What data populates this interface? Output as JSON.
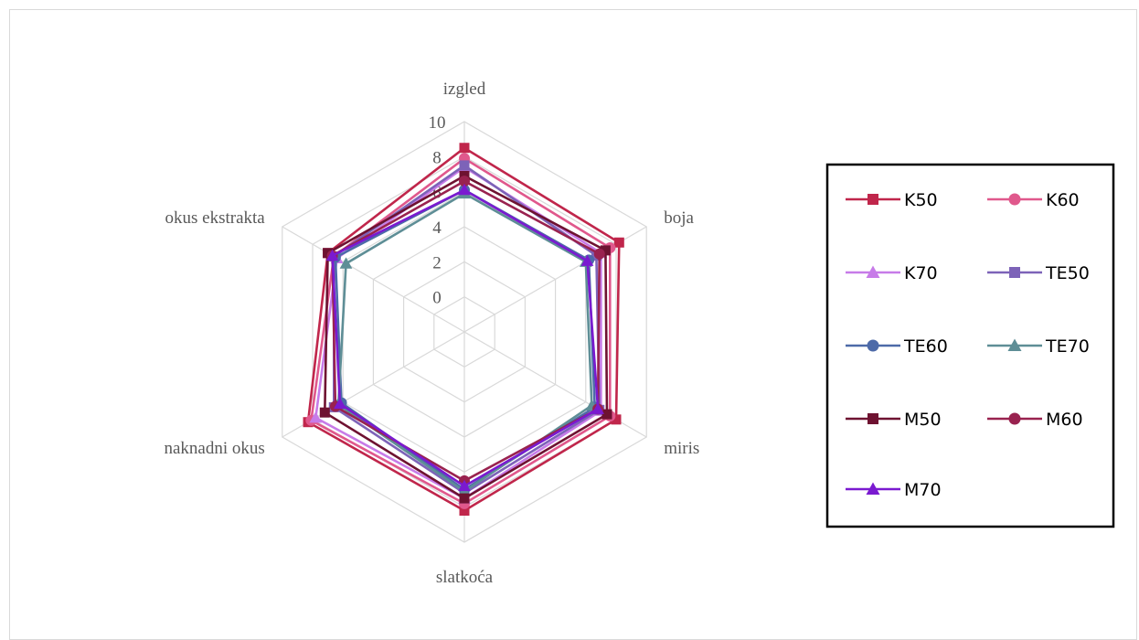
{
  "chart_data": {
    "type": "radar",
    "axes": [
      "izgled",
      "boja",
      "miris",
      "slatkoća",
      "naknadni okus",
      "okus ekstrakta"
    ],
    "r_ticks": [
      "0",
      "2",
      "4",
      "6",
      "8",
      "10"
    ],
    "r_range": [
      -2,
      10
    ],
    "grid": true,
    "legend_position": "right",
    "series": [
      {
        "name": "K50",
        "color": "#c0264b",
        "marker": "square",
        "values": [
          8.5,
          8.2,
          8.0,
          8.2,
          8.3,
          7.0
        ]
      },
      {
        "name": "K60",
        "color": "#e0588c",
        "marker": "circle",
        "values": [
          7.9,
          7.6,
          7.6,
          7.8,
          8.1,
          6.6
        ]
      },
      {
        "name": "K70",
        "color": "#c77be8",
        "marker": "triangle",
        "values": [
          7.4,
          7.0,
          7.0,
          7.5,
          7.8,
          6.4
        ]
      },
      {
        "name": "TE50",
        "color": "#7d63b8",
        "marker": "square",
        "values": [
          7.5,
          6.7,
          6.9,
          7.2,
          6.6,
          6.6
        ]
      },
      {
        "name": "TE60",
        "color": "#4d6aa8",
        "marker": "circle",
        "values": [
          6.1,
          6.2,
          6.6,
          7.0,
          6.1,
          6.5
        ]
      },
      {
        "name": "TE70",
        "color": "#5e8e96",
        "marker": "triangle",
        "values": [
          5.9,
          6.0,
          6.4,
          7.1,
          6.3,
          5.8
        ]
      },
      {
        "name": "M50",
        "color": "#6e1231",
        "marker": "square",
        "values": [
          6.9,
          7.3,
          7.4,
          7.5,
          7.2,
          7.0
        ]
      },
      {
        "name": "M60",
        "color": "#99224f",
        "marker": "circle",
        "values": [
          6.6,
          6.9,
          6.8,
          6.5,
          6.5,
          6.7
        ]
      },
      {
        "name": "M70",
        "color": "#7a1ad0",
        "marker": "triangle",
        "values": [
          6.1,
          6.1,
          6.8,
          6.8,
          6.2,
          6.7
        ]
      }
    ]
  }
}
